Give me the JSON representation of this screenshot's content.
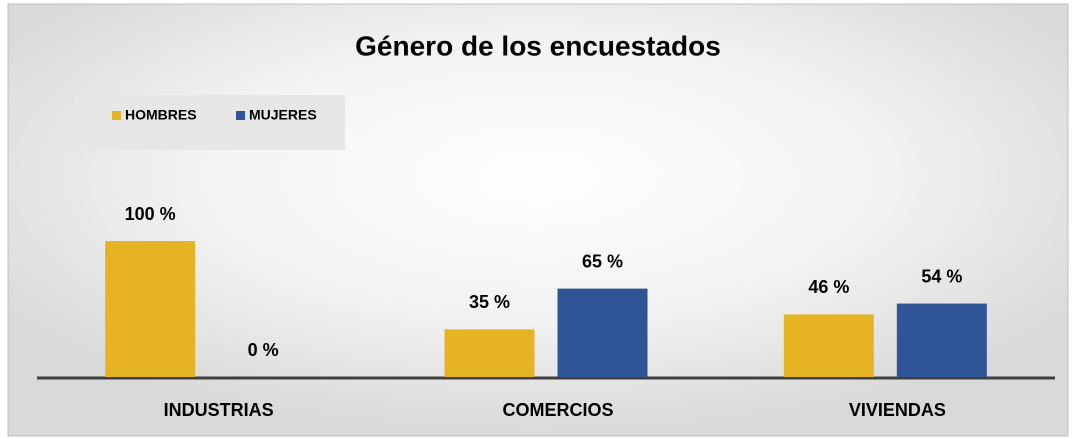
{
  "chart_data": {
    "type": "bar",
    "title": "Género de los encuestados",
    "categories": [
      "INDUSTRIAS",
      "COMERCIOS",
      "VIVIENDAS"
    ],
    "series": [
      {
        "name": "HOMBRES",
        "color": "#e6b325",
        "values": [
          100,
          35,
          46
        ],
        "value_labels": [
          "100 %",
          "35 %",
          "46 %"
        ]
      },
      {
        "name": "MUJERES",
        "color": "#2f5597",
        "values": [
          0,
          65,
          54
        ],
        "value_labels": [
          "0 %",
          "65 %",
          "54 %"
        ]
      }
    ]
  }
}
